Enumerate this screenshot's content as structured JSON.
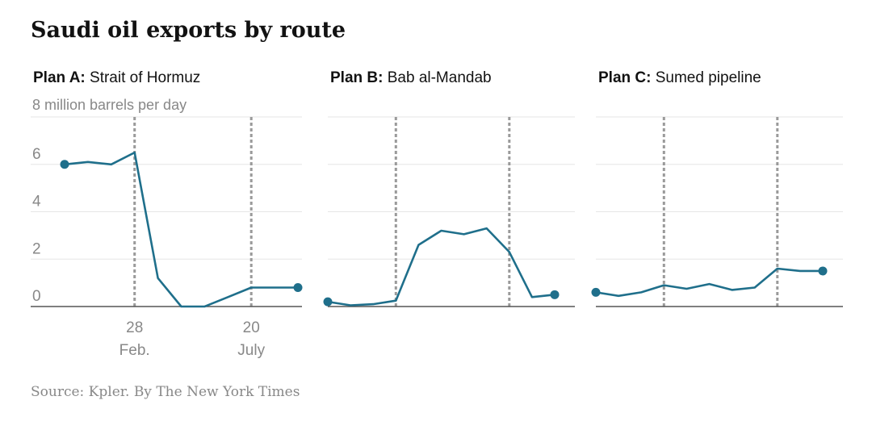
{
  "header": {
    "title": "Saudi oil exports by route"
  },
  "footer": {
    "source": "Source: Kpler.  By The New York Times"
  },
  "chart_data": {
    "type": "line",
    "title": "Saudi oil exports by route",
    "ylabel": "8 million barrels per day",
    "ylim": [
      0,
      8
    ],
    "yticks": [
      0,
      2,
      4,
      6,
      8
    ],
    "ytick_labels": [
      "0",
      "2",
      "4",
      "6",
      ""
    ],
    "xlim": [
      0,
      10
    ],
    "xticks": [
      {
        "x": 3,
        "day": "28",
        "month": "Feb."
      },
      {
        "x": 8,
        "day": "20",
        "month": "July"
      }
    ],
    "event_lines_x": [
      3,
      8
    ],
    "grid": true,
    "color": "#1f6f8b",
    "panels": [
      {
        "label_bold": "Plan A:",
        "label": "Strait of Hormuz",
        "x": [
          0,
          1,
          2,
          3,
          4,
          5,
          6,
          7,
          8,
          9,
          10
        ],
        "y": [
          6.0,
          6.1,
          6.0,
          6.5,
          1.2,
          0.0,
          0.0,
          0.4,
          0.8,
          0.8,
          0.8
        ]
      },
      {
        "label_bold": "Plan B:",
        "label": "Bab al-Mandab",
        "x": [
          0,
          1,
          2,
          3,
          4,
          5,
          6,
          7,
          8,
          9,
          10
        ],
        "y": [
          0.2,
          0.05,
          0.1,
          0.25,
          2.6,
          3.2,
          3.05,
          3.3,
          2.3,
          0.4,
          0.5
        ]
      },
      {
        "label_bold": "Plan C:",
        "label": "Sumed pipeline",
        "x": [
          0,
          1,
          2,
          3,
          4,
          5,
          6,
          7,
          8,
          9,
          10
        ],
        "y": [
          0.6,
          0.45,
          0.6,
          0.9,
          0.75,
          0.95,
          0.7,
          0.8,
          1.6,
          1.5,
          1.5
        ]
      }
    ]
  }
}
